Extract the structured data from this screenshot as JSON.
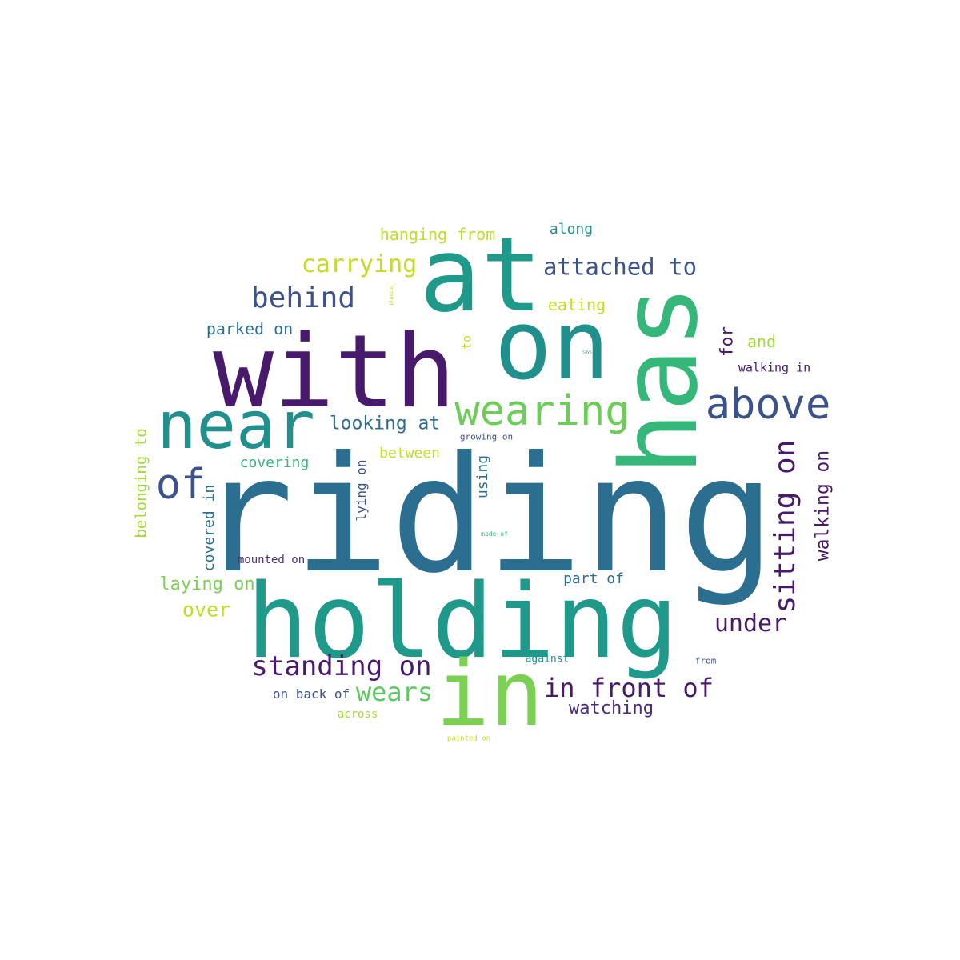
{
  "colors": {
    "background": "#ffffff",
    "dark_purple": "#481a6c",
    "indigo": "#3b528b",
    "steel_blue": "#2c6e8f",
    "teal": "#21908d",
    "green": "#35b779",
    "light_green": "#7ad151",
    "yellow_green": "#bddf26"
  },
  "words": [
    {
      "text": "riding"
    },
    {
      "text": "holding"
    },
    {
      "text": "with"
    },
    {
      "text": "at"
    },
    {
      "text": "on"
    },
    {
      "text": "has"
    },
    {
      "text": "near"
    },
    {
      "text": "in"
    },
    {
      "text": "wearing"
    },
    {
      "text": "above"
    },
    {
      "text": "of"
    },
    {
      "text": "sitting on"
    },
    {
      "text": "standing on"
    },
    {
      "text": "in front of"
    },
    {
      "text": "attached to"
    },
    {
      "text": "behind"
    },
    {
      "text": "carrying"
    },
    {
      "text": "wears"
    },
    {
      "text": "under"
    },
    {
      "text": "walking on"
    },
    {
      "text": "hanging from"
    },
    {
      "text": "looking at"
    },
    {
      "text": "watching"
    },
    {
      "text": "over"
    },
    {
      "text": "laying on"
    },
    {
      "text": "parked on"
    },
    {
      "text": "eating"
    },
    {
      "text": "belonging to"
    },
    {
      "text": "covered in"
    },
    {
      "text": "for"
    },
    {
      "text": "covering"
    },
    {
      "text": "along"
    },
    {
      "text": "and"
    },
    {
      "text": "between"
    },
    {
      "text": "part of"
    },
    {
      "text": "using"
    },
    {
      "text": "lying on"
    },
    {
      "text": "on back of"
    },
    {
      "text": "walking in"
    },
    {
      "text": "mounted on"
    },
    {
      "text": "against"
    },
    {
      "text": "to"
    },
    {
      "text": "across"
    },
    {
      "text": "growing on"
    },
    {
      "text": "from"
    },
    {
      "text": "made of"
    },
    {
      "text": "painted on"
    },
    {
      "text": "playing"
    },
    {
      "text": "says"
    }
  ]
}
